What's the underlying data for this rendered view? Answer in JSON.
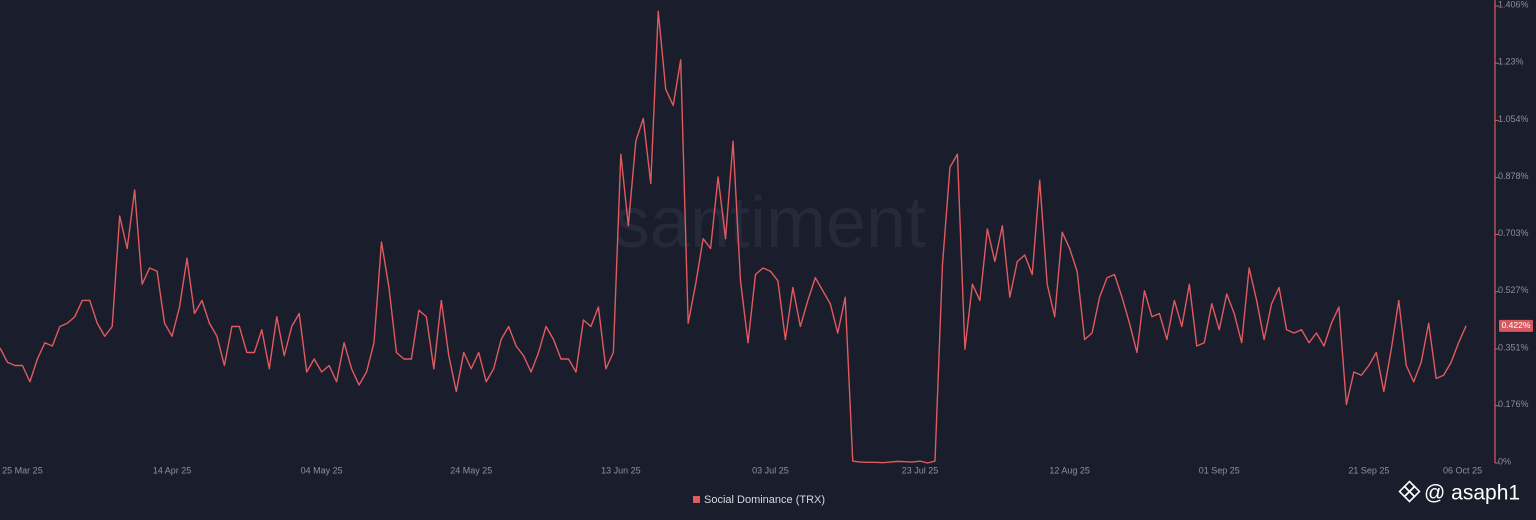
{
  "chart_data": {
    "type": "line",
    "watermark": "santiment",
    "credit": "@ asaph1",
    "current_label": "0.422%",
    "categories": [
      null,
      null,
      null,
      "25 Mar 25",
      null,
      null,
      null,
      null,
      null,
      null,
      null,
      null,
      null,
      null,
      null,
      null,
      null,
      null,
      null,
      null,
      null,
      null,
      null,
      "14 Apr 25",
      null,
      null,
      null,
      null,
      null,
      null,
      null,
      null,
      null,
      null,
      null,
      null,
      null,
      null,
      null,
      null,
      null,
      null,
      null,
      "04 May 25",
      null,
      null,
      null,
      null,
      null,
      null,
      null,
      null,
      null,
      null,
      null,
      null,
      null,
      null,
      null,
      null,
      null,
      null,
      null,
      "24 May 25",
      null,
      null,
      null,
      null,
      null,
      null,
      null,
      null,
      null,
      null,
      null,
      null,
      null,
      null,
      null,
      null,
      null,
      null,
      null,
      "13 Jun 25",
      null,
      null,
      null,
      null,
      null,
      null,
      null,
      null,
      null,
      null,
      null,
      null,
      null,
      null,
      null,
      null,
      null,
      null,
      null,
      "03 Jul 25",
      null,
      null,
      null,
      null,
      null,
      null,
      null,
      null,
      null,
      null,
      null,
      null,
      null,
      null,
      null,
      null,
      null,
      null,
      null,
      "23 Jul 25",
      null,
      null,
      null,
      null,
      null,
      null,
      null,
      null,
      null,
      null,
      null,
      null,
      null,
      null,
      null,
      null,
      null,
      null,
      null,
      "12 Aug 25",
      null,
      null,
      null,
      null,
      null,
      null,
      null,
      null,
      null,
      null,
      null,
      null,
      null,
      null,
      null,
      null,
      null,
      null,
      null,
      "01 Sep 25",
      null,
      null,
      null,
      null,
      null,
      null,
      null,
      null,
      null,
      null,
      null,
      null,
      null,
      null,
      null,
      null,
      null,
      null,
      null,
      "21 Sep 25",
      null,
      null,
      null,
      null,
      null,
      null,
      null,
      null,
      null,
      null,
      null,
      null,
      "06 Oct 25"
    ],
    "series": [
      {
        "name": "Social Dominance (TRX)",
        "color": "#e05a5e",
        "values": [
          0.354,
          0.31,
          0.3,
          0.3,
          0.25,
          0.32,
          0.37,
          0.36,
          0.42,
          0.43,
          0.45,
          0.5,
          0.5,
          0.43,
          0.39,
          0.42,
          0.76,
          0.66,
          0.84,
          0.55,
          0.6,
          0.59,
          0.43,
          0.39,
          0.48,
          0.63,
          0.46,
          0.5,
          0.43,
          0.39,
          0.3,
          0.42,
          0.42,
          0.34,
          0.34,
          0.41,
          0.29,
          0.45,
          0.33,
          0.42,
          0.46,
          0.28,
          0.32,
          0.28,
          0.3,
          0.25,
          0.37,
          0.29,
          0.24,
          0.28,
          0.37,
          0.68,
          0.54,
          0.34,
          0.32,
          0.32,
          0.47,
          0.45,
          0.29,
          0.5,
          0.33,
          0.22,
          0.34,
          0.29,
          0.34,
          0.25,
          0.29,
          0.38,
          0.42,
          0.36,
          0.33,
          0.28,
          0.34,
          0.42,
          0.38,
          0.32,
          0.32,
          0.28,
          0.44,
          0.42,
          0.48,
          0.29,
          0.34,
          0.95,
          0.73,
          0.99,
          1.06,
          0.86,
          1.39,
          1.15,
          1.1,
          1.24,
          0.43,
          0.55,
          0.69,
          0.66,
          0.88,
          0.69,
          0.99,
          0.56,
          0.37,
          0.58,
          0.6,
          0.59,
          0.56,
          0.38,
          0.54,
          0.42,
          0.5,
          0.57,
          0.53,
          0.49,
          0.4,
          0.51,
          0.006,
          0.003,
          0.002,
          0.002,
          0.001,
          0.003,
          0.005,
          0.004,
          0.003,
          0.006,
          0.0,
          0.006,
          0.61,
          0.91,
          0.95,
          0.35,
          0.55,
          0.5,
          0.72,
          0.62,
          0.73,
          0.51,
          0.62,
          0.64,
          0.58,
          0.87,
          0.55,
          0.45,
          0.71,
          0.66,
          0.59,
          0.38,
          0.4,
          0.51,
          0.57,
          0.58,
          0.51,
          0.43,
          0.34,
          0.53,
          0.45,
          0.46,
          0.38,
          0.5,
          0.42,
          0.55,
          0.36,
          0.37,
          0.49,
          0.41,
          0.52,
          0.46,
          0.37,
          0.6,
          0.5,
          0.38,
          0.49,
          0.54,
          0.41,
          0.4,
          0.41,
          0.37,
          0.4,
          0.36,
          0.43,
          0.48,
          0.18,
          0.28,
          0.27,
          0.3,
          0.34,
          0.22,
          0.35,
          0.5,
          0.3,
          0.25,
          0.31,
          0.43,
          0.26,
          0.27,
          0.31,
          0.37,
          0.422
        ]
      }
    ],
    "ylim": [
      0,
      1.406
    ],
    "yticks": [
      {
        "value": 0,
        "label": "0%"
      },
      {
        "value": 0.176,
        "label": "0.176%"
      },
      {
        "value": 0.351,
        "label": "0.351%"
      },
      {
        "value": 0.527,
        "label": "0.527%"
      },
      {
        "value": 0.703,
        "label": "0.703%"
      },
      {
        "value": 0.878,
        "label": "0.878%"
      },
      {
        "value": 1.054,
        "label": "1.054%"
      },
      {
        "value": 1.23,
        "label": "1.23%"
      },
      {
        "value": 1.406,
        "label": "1.406%"
      }
    ],
    "axis_color": "#d95a5e"
  }
}
